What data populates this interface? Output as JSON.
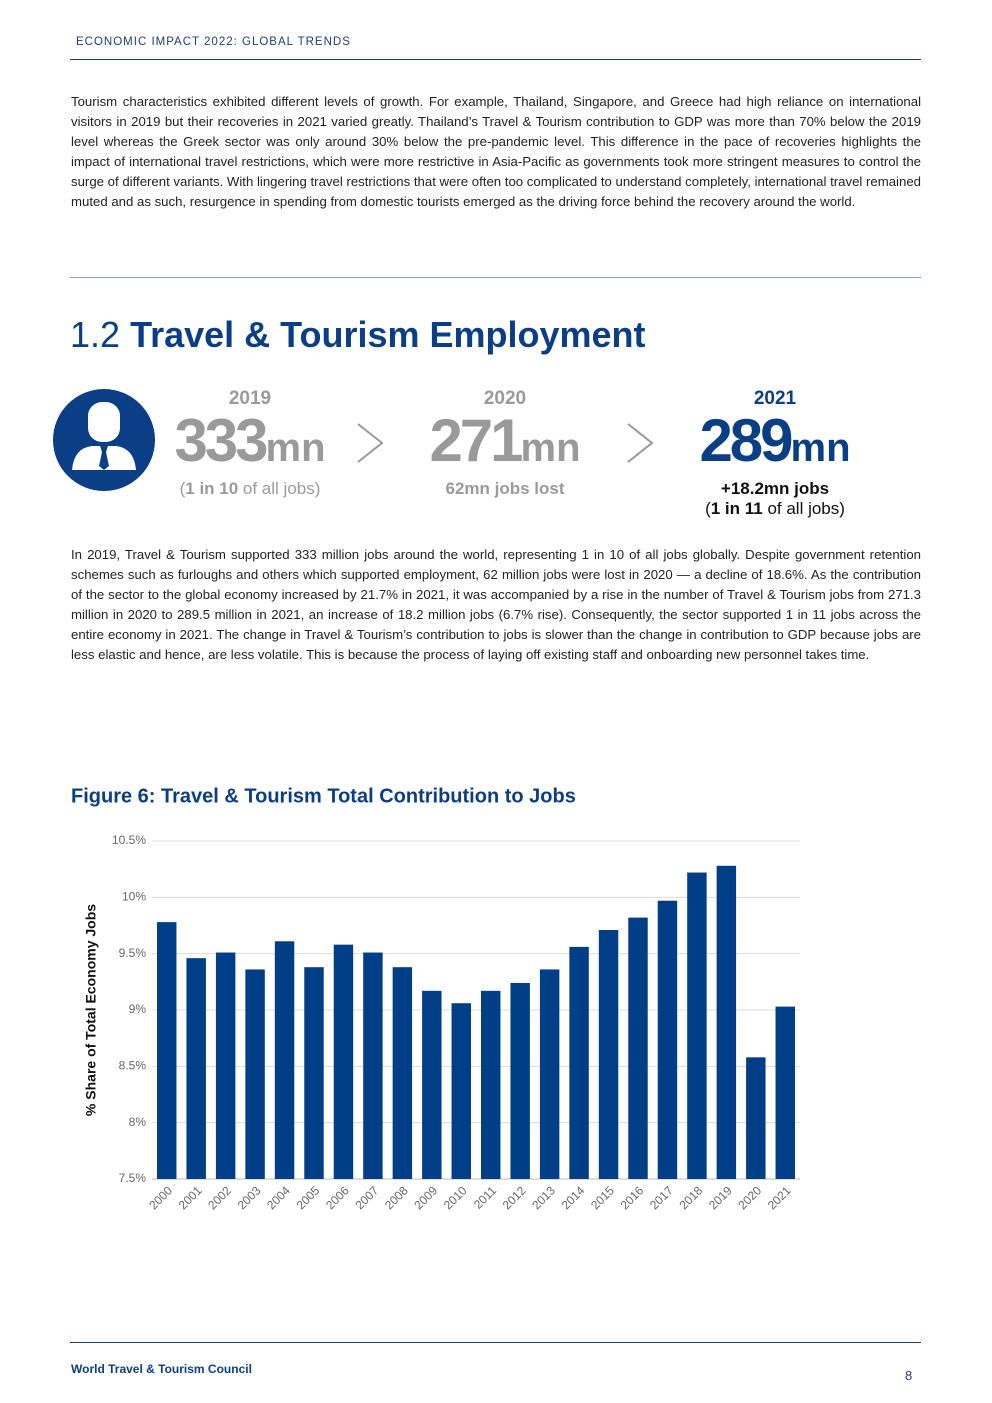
{
  "header": {
    "title": "ECONOMIC IMPACT 2022: GLOBAL TRENDS"
  },
  "intro": "Tourism characteristics exhibited different levels of growth. For example, Thailand, Singapore, and Greece had high reliance on international visitors in 2019 but their recoveries in 2021 varied greatly. Thailand’s Travel & Tourism contribution to GDP was more than 70% below the 2019 level whereas the Greek sector was only around 30% below the pre-pandemic level. This difference in the pace of recoveries highlights the impact of international travel restrictions, which were more restrictive in Asia-Pacific as governments took more stringent measures to control the surge of different variants. With lingering travel restrictions that were often too complicated to understand completely, international travel remained muted and as such, resurgence in spending from domestic tourists emerged as the driving force behind the recovery around the world.",
  "section": {
    "number": "1.2",
    "title": "Travel & Tourism Employment"
  },
  "stats": [
    {
      "year": "2019",
      "value": "333",
      "unit": "mn",
      "note_parts": [
        "(",
        "1 in 10",
        " of all jobs)"
      ]
    },
    {
      "year": "2020",
      "value": "271",
      "unit": "mn",
      "note": "62mn jobs lost"
    },
    {
      "year": "2021",
      "value": "289",
      "unit": "mn",
      "note": "+18.2mn jobs",
      "note_parts": [
        "(",
        "1 in 11",
        " of all jobs)"
      ]
    }
  ],
  "body": "In 2019, Travel & Tourism supported 333 million jobs around the world, representing 1 in 10 of all jobs globally. Despite government retention schemes such as furloughs and others which supported employment, 62 million jobs were lost in 2020 — a decline of 18.6%. As the contribution of the sector to the global economy increased by 21.7% in 2021, it was accompanied by a rise in the number of Travel & Tourism jobs from 271.3 million in 2020 to 289.5 million in 2021, an increase of 18.2 million jobs (6.7% rise). Consequently, the sector supported 1 in 11 jobs across the entire economy in 2021. The change in Travel & Tourism’s contribution to jobs is slower than the change in contribution to GDP because jobs are less elastic and hence, are less volatile. This is because the process of laying off existing staff and onboarding new personnel takes time.",
  "chart_data": {
    "type": "bar",
    "title": "Figure 6: Travel & Tourism Total Contribution to Jobs",
    "ylabel": "% Share of Total Economy Jobs",
    "categories": [
      "2000",
      "2001",
      "2002",
      "2003",
      "2004",
      "2005",
      "2006",
      "2007",
      "2008",
      "2009",
      "2010",
      "2011",
      "2012",
      "2013",
      "2014",
      "2015",
      "2016",
      "2017",
      "2018",
      "2019",
      "2020",
      "2021"
    ],
    "values": [
      9.78,
      9.46,
      9.51,
      9.36,
      9.61,
      9.38,
      9.58,
      9.51,
      9.38,
      9.17,
      9.06,
      9.17,
      9.24,
      9.36,
      9.56,
      9.71,
      9.82,
      9.97,
      10.22,
      10.28,
      8.58,
      9.03
    ],
    "color": "#003f87",
    "ylim": [
      7.5,
      10.5
    ],
    "yticks": [
      {
        "value": 7.5,
        "label": "7.5%"
      },
      {
        "value": 8,
        "label": "8%"
      },
      {
        "value": 8.5,
        "label": "8.5%"
      },
      {
        "value": 9,
        "label": "9%"
      },
      {
        "value": 9.5,
        "label": "9.5%"
      },
      {
        "value": 10,
        "label": "10%"
      },
      {
        "value": 10.5,
        "label": "10.5%"
      }
    ],
    "grid": true
  },
  "footer": {
    "org": "World Travel & Tourism Council",
    "page": "8"
  }
}
